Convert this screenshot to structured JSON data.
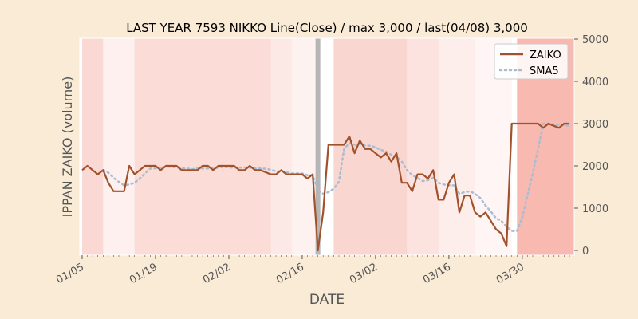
{
  "chart_data": {
    "type": "line",
    "title": "LAST YEAR 7593 NIKKO Line(Close) / max 3,000 / last(04/08) 3,000",
    "xlabel": "DATE",
    "ylabel": "IPPAN ZAIKO (volume)",
    "ylim": [
      0,
      5000
    ],
    "yticks": [
      0,
      1000,
      2000,
      3000,
      4000,
      5000
    ],
    "y_axis_side": "right",
    "x_date_range": [
      "01/05",
      "04/08"
    ],
    "xticks": [
      "01/05",
      "01/19",
      "02/02",
      "02/16",
      "03/02",
      "03/16",
      "03/30"
    ],
    "grid": false,
    "legend_position": "upper right",
    "colors": {
      "zaiko": "#a0522d",
      "sma5": "#a9bcd0",
      "background": "#faebd7",
      "plot_background": "#ffffff",
      "band": "#f08070",
      "marker": "#a9a9a9"
    },
    "series": [
      {
        "name": "ZAIKO",
        "style": "solid",
        "x": [
          "01/05",
          "01/06",
          "01/07",
          "01/08",
          "01/09",
          "01/10",
          "01/11",
          "01/12",
          "01/13",
          "01/14",
          "01/15",
          "01/16",
          "01/17",
          "01/18",
          "01/19",
          "01/20",
          "01/21",
          "01/22",
          "01/23",
          "01/24",
          "01/25",
          "01/26",
          "01/27",
          "01/28",
          "01/29",
          "01/30",
          "01/31",
          "02/01",
          "02/02",
          "02/03",
          "02/04",
          "02/05",
          "02/06",
          "02/07",
          "02/08",
          "02/09",
          "02/10",
          "02/11",
          "02/12",
          "02/13",
          "02/14",
          "02/15",
          "02/16",
          "02/17",
          "02/18",
          "02/19",
          "02/20",
          "02/21",
          "02/22",
          "02/23",
          "02/24",
          "02/25",
          "02/26",
          "02/27",
          "02/28",
          "03/01",
          "03/02",
          "03/03",
          "03/04",
          "03/05",
          "03/06",
          "03/07",
          "03/08",
          "03/09",
          "03/10",
          "03/11",
          "03/12",
          "03/13",
          "03/14",
          "03/15",
          "03/16",
          "03/17",
          "03/18",
          "03/19",
          "03/20",
          "03/21",
          "03/22",
          "03/23",
          "03/24",
          "03/25",
          "03/26",
          "03/27",
          "03/28",
          "03/29",
          "03/30",
          "03/31",
          "04/01",
          "04/02",
          "04/03",
          "04/04",
          "04/05",
          "04/06",
          "04/07",
          "04/08"
        ],
        "y": [
          1900,
          2000,
          1900,
          1800,
          1900,
          1600,
          1400,
          1400,
          1400,
          2000,
          1800,
          1900,
          2000,
          2000,
          2000,
          1900,
          2000,
          2000,
          2000,
          1900,
          1900,
          1900,
          1900,
          2000,
          2000,
          1900,
          2000,
          2000,
          2000,
          2000,
          1900,
          1900,
          2000,
          1900,
          1900,
          1850,
          1800,
          1800,
          1900,
          1800,
          1800,
          1800,
          1800,
          1700,
          1800,
          0,
          900,
          2500,
          2500,
          2500,
          2500,
          2700,
          2300,
          2600,
          2400,
          2400,
          2300,
          2200,
          2300,
          2100,
          2300,
          1600,
          1600,
          1400,
          1800,
          1800,
          1700,
          1900,
          1200,
          1200,
          1600,
          1800,
          900,
          1300,
          1300,
          900,
          800,
          900,
          700,
          500,
          400,
          100,
          3000,
          3000,
          3000,
          3000,
          3000,
          3000,
          2900,
          3000,
          2950,
          2900,
          3000,
          3000
        ]
      },
      {
        "name": "SMA5",
        "style": "dotted",
        "x": [
          "01/09",
          "01/10",
          "01/11",
          "01/12",
          "01/13",
          "01/14",
          "01/15",
          "01/16",
          "01/17",
          "01/18",
          "01/19",
          "01/20",
          "01/21",
          "01/22",
          "01/23",
          "01/24",
          "01/25",
          "01/26",
          "01/27",
          "01/28",
          "01/29",
          "01/30",
          "01/31",
          "02/01",
          "02/02",
          "02/03",
          "02/04",
          "02/05",
          "02/06",
          "02/07",
          "02/08",
          "02/09",
          "02/10",
          "02/11",
          "02/12",
          "02/13",
          "02/14",
          "02/15",
          "02/16",
          "02/17",
          "02/18",
          "02/19",
          "02/20",
          "02/21",
          "02/22",
          "02/23",
          "02/24",
          "02/25",
          "02/26",
          "02/27",
          "02/28",
          "03/01",
          "03/02",
          "03/03",
          "03/04",
          "03/05",
          "03/06",
          "03/07",
          "03/08",
          "03/09",
          "03/10",
          "03/11",
          "03/12",
          "03/13",
          "03/14",
          "03/15",
          "03/16",
          "03/17",
          "03/18",
          "03/19",
          "03/20",
          "03/21",
          "03/22",
          "03/23",
          "03/24",
          "03/25",
          "03/26",
          "03/27",
          "03/28",
          "03/29",
          "03/30",
          "03/31",
          "04/01",
          "04/02",
          "04/03",
          "04/04",
          "04/05",
          "04/06",
          "04/07",
          "04/08"
        ],
        "y": [
          1900,
          1840,
          1720,
          1620,
          1540,
          1560,
          1600,
          1700,
          1820,
          1940,
          1940,
          1960,
          1980,
          1980,
          1960,
          1940,
          1940,
          1920,
          1940,
          1940,
          1940,
          1940,
          1960,
          1980,
          1960,
          1960,
          1960,
          1960,
          1960,
          1940,
          1940,
          1930,
          1910,
          1870,
          1870,
          1850,
          1820,
          1820,
          1820,
          1780,
          1780,
          1420,
          1340,
          1380,
          1460,
          1620,
          2400,
          2540,
          2500,
          2520,
          2480,
          2480,
          2440,
          2380,
          2340,
          2260,
          2220,
          2100,
          1900,
          1780,
          1720,
          1640,
          1660,
          1720,
          1600,
          1560,
          1540,
          1540,
          1340,
          1380,
          1400,
          1340,
          1240,
          1060,
          920,
          760,
          700,
          560,
          460,
          460,
          780,
          1300,
          1820,
          2400,
          3000,
          3000,
          2980,
          2980,
          2970,
          2950
        ]
      }
    ],
    "bands": [
      {
        "from": "01/05",
        "to": "01/09",
        "intensity": 0.3
      },
      {
        "from": "01/09",
        "to": "01/15",
        "intensity": 0.12
      },
      {
        "from": "01/15",
        "to": "02/10",
        "intensity": 0.28
      },
      {
        "from": "02/10",
        "to": "02/14",
        "intensity": 0.18
      },
      {
        "from": "02/14",
        "to": "02/19",
        "intensity": 0.1
      },
      {
        "from": "02/22",
        "to": "03/08",
        "intensity": 0.32
      },
      {
        "from": "03/08",
        "to": "03/14",
        "intensity": 0.22
      },
      {
        "from": "03/14",
        "to": "03/21",
        "intensity": 0.14
      },
      {
        "from": "03/21",
        "to": "03/28",
        "intensity": 0.08
      },
      {
        "from": "03/29",
        "to": "04/11",
        "intensity": 0.55
      }
    ],
    "markers": [
      {
        "at": "02/19"
      }
    ]
  }
}
